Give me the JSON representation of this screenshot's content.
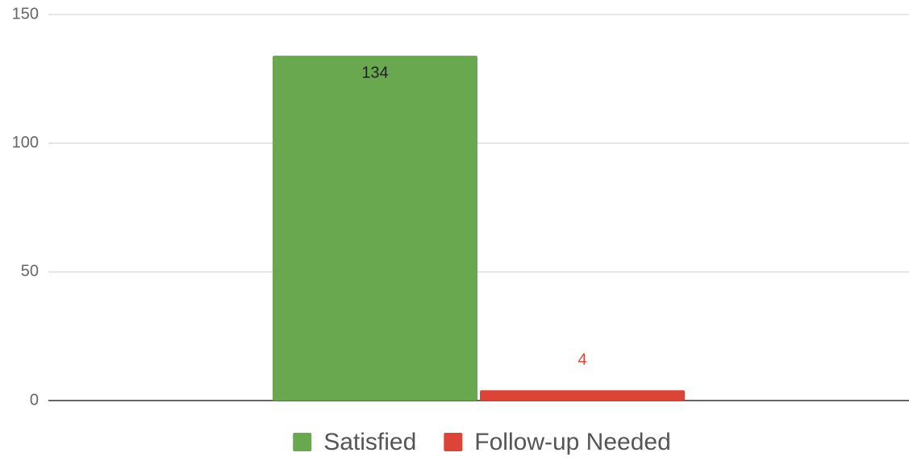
{
  "chart_data": {
    "type": "bar",
    "categories": [
      null
    ],
    "series": [
      {
        "name": "Satisfied",
        "color": "#6aa84f",
        "values": [
          134
        ]
      },
      {
        "name": "Follow-up Needed",
        "color": "#db4437",
        "values": [
          4
        ]
      }
    ],
    "ylim": [
      0,
      150
    ],
    "yticks": [
      0,
      50,
      100,
      150
    ],
    "grid": true,
    "legend": "bottom"
  }
}
